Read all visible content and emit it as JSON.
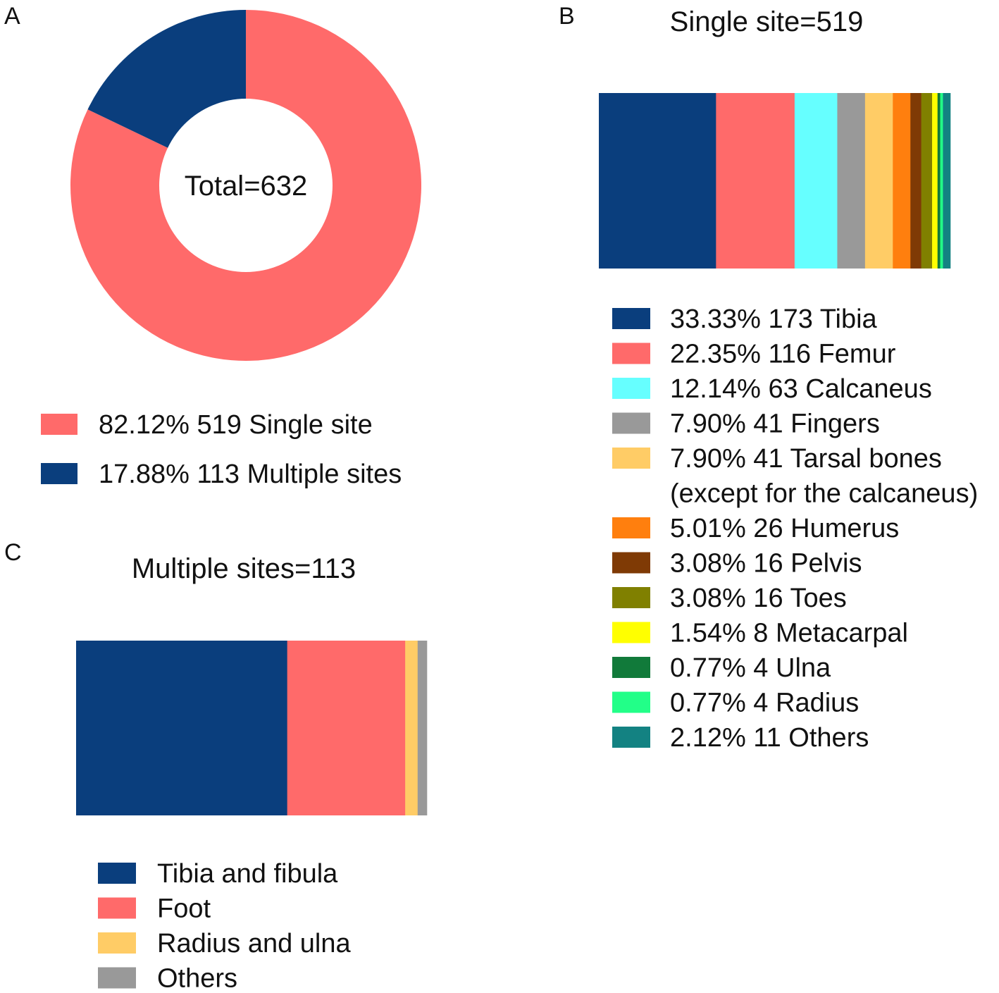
{
  "chart_data": [
    {
      "panel": "A",
      "type": "pie",
      "subtype": "donut",
      "center_label": "Total=632",
      "title": "",
      "start": "top, clockwise",
      "slices": [
        {
          "name": "Single site",
          "percent_label": "82.12%",
          "count_label": "519",
          "value": 519,
          "color": "#FF6A6A"
        },
        {
          "name": "Multiple sites",
          "percent_label": "17.88%",
          "count_label": "113",
          "value": 113,
          "color": "#0A3E7D"
        }
      ],
      "legend_position": "bottom"
    },
    {
      "panel": "B",
      "type": "bar",
      "subtype": "100% stacked horizontal",
      "title": "Single site=519",
      "legend_position": "bottom",
      "segments": [
        {
          "name": "Tibia",
          "percent_label": "33.33%",
          "count_label": "173",
          "value": 173,
          "color": "#0A3E7D"
        },
        {
          "name": "Femur",
          "percent_label": "22.35%",
          "count_label": "116",
          "value": 116,
          "color": "#FF6A6A"
        },
        {
          "name": "Calcaneus",
          "percent_label": "12.14%",
          "count_label": "63",
          "value": 63,
          "color": "#66FFFF"
        },
        {
          "name": "Fingers",
          "percent_label": "7.90%",
          "count_label": "41",
          "value": 41,
          "color": "#999999"
        },
        {
          "name": "Tarsal bones",
          "name_line2": "(except for the calcaneus)",
          "percent_label": "7.90%",
          "count_label": "41",
          "value": 41,
          "color": "#FFCC66"
        },
        {
          "name": "Humerus",
          "percent_label": "5.01%",
          "count_label": "26",
          "value": 26,
          "color": "#FF7F0E"
        },
        {
          "name": "Pelvis",
          "percent_label": "3.08%",
          "count_label": "16",
          "value": 16,
          "color": "#7F3A05"
        },
        {
          "name": "Toes",
          "percent_label": "3.08%",
          "count_label": "16",
          "value": 16,
          "color": "#808000"
        },
        {
          "name": "Metacarpal",
          "percent_label": "1.54%",
          "count_label": "8",
          "value": 8,
          "color": "#FFFF00"
        },
        {
          "name": "Ulna",
          "percent_label": "0.77%",
          "count_label": "4",
          "value": 4,
          "color": "#117A3A"
        },
        {
          "name": "Radius",
          "percent_label": "0.77%",
          "count_label": "4",
          "value": 4,
          "color": "#22FF88"
        },
        {
          "name": "Others",
          "percent_label": "2.12%",
          "count_label": "11",
          "value": 11,
          "color": "#138282"
        }
      ]
    },
    {
      "panel": "C",
      "type": "bar",
      "subtype": "100% stacked horizontal",
      "title": "Multiple sites=113",
      "legend_position": "bottom",
      "segments": [
        {
          "name": "Tibia and fibula",
          "value": 68,
          "color": "#0A3E7D"
        },
        {
          "name": "Foot",
          "value": 38,
          "color": "#FF6A6A"
        },
        {
          "name": "Radius and ulna",
          "value": 4,
          "color": "#FFCC66"
        },
        {
          "name": "Others",
          "value": 3,
          "color": "#999999"
        }
      ]
    }
  ]
}
